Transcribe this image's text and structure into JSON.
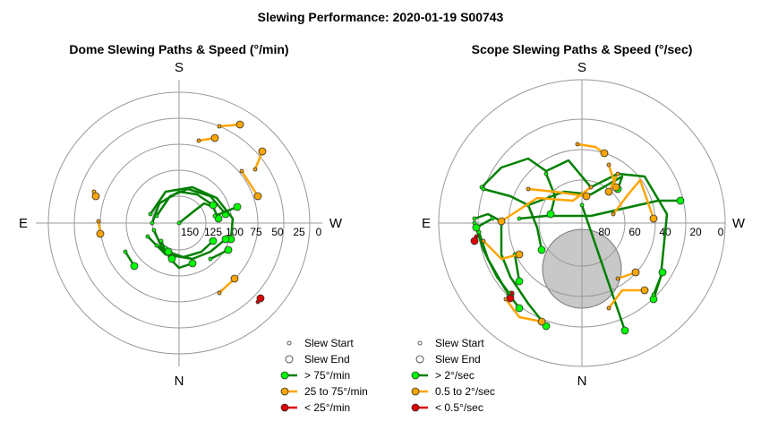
{
  "figure": {
    "title": "Slewing Performance: 2020-01-19 S00743"
  },
  "chart_data": [
    {
      "type": "scatter",
      "title": "Dome Slewing Paths & Speed (°/min)",
      "cardinals": {
        "top": "S",
        "bottom": "N",
        "left": "E",
        "right": "W"
      },
      "radial_ticks": [
        "150",
        "125",
        "100",
        "75",
        "50",
        "25",
        "0"
      ],
      "rlim": [
        175,
        0
      ],
      "grid": true,
      "legend_position": "bottom-right",
      "legend": [
        {
          "label": "Slew Start",
          "kind": "start"
        },
        {
          "label": "Slew End",
          "kind": "end"
        },
        {
          "label": "> 75°/min",
          "kind": "line",
          "color": "#008000",
          "marker": "#00ff00"
        },
        {
          "label": "25 to 75°/min",
          "kind": "line",
          "color": "#ffa500",
          "marker": "#ffa500"
        },
        {
          "label": "< 25°/min",
          "kind": "line",
          "color": "#dd0000",
          "marker": "#dd0000"
        }
      ],
      "paths": [
        {
          "speed": "fast",
          "points": [
            [
              0,
              0
            ],
            [
              15,
              -12
            ],
            [
              28,
              -22
            ],
            [
              38,
              -18
            ],
            [
              44,
              -5
            ]
          ]
        },
        {
          "speed": "fast",
          "points": [
            [
              -25,
              -8
            ],
            [
              -10,
              -30
            ],
            [
              10,
              -38
            ],
            [
              35,
              -30
            ],
            [
              52,
              -10
            ]
          ]
        },
        {
          "speed": "fast",
          "points": [
            [
              -30,
              0
            ],
            [
              -22,
              -22
            ],
            [
              0,
              -35
            ],
            [
              20,
              -32
            ],
            [
              38,
              -20
            ]
          ]
        },
        {
          "speed": "fast",
          "points": [
            [
              -28,
              8
            ],
            [
              -18,
              30
            ],
            [
              5,
              38
            ],
            [
              25,
              32
            ],
            [
              38,
              20
            ]
          ]
        },
        {
          "speed": "fast",
          "points": [
            [
              -32,
              -10
            ],
            [
              -15,
              -35
            ],
            [
              15,
              -40
            ],
            [
              42,
              -28
            ],
            [
              60,
              -5
            ],
            [
              58,
              18
            ]
          ]
        },
        {
          "speed": "fast",
          "points": [
            [
              -35,
              15
            ],
            [
              -15,
              35
            ],
            [
              15,
              40
            ],
            [
              35,
              32
            ],
            [
              52,
              18
            ]
          ]
        },
        {
          "speed": "fast",
          "points": [
            [
              -20,
              20
            ],
            [
              -10,
              40
            ],
            [
              0,
              50
            ],
            [
              15,
              45
            ]
          ]
        },
        {
          "speed": "fast",
          "points": [
            [
              -60,
              32
            ],
            [
              -50,
              48
            ]
          ]
        },
        {
          "speed": "fast",
          "points": [
            [
              -15,
              28
            ],
            [
              -8,
              40
            ]
          ]
        },
        {
          "speed": "fast",
          "points": [
            [
              35,
              40
            ],
            [
              55,
              30
            ]
          ]
        },
        {
          "speed": "fast",
          "points": [
            [
              -25,
              25
            ],
            [
              -12,
              32
            ]
          ]
        },
        {
          "speed": "fast",
          "points": [
            [
              40,
              -8
            ],
            [
              65,
              -18
            ]
          ]
        },
        {
          "speed": "medium",
          "points": [
            [
              45,
              -108
            ],
            [
              68,
              -110
            ]
          ]
        },
        {
          "speed": "medium",
          "points": [
            [
              22,
              -92
            ],
            [
              40,
              -95
            ]
          ]
        },
        {
          "speed": "medium",
          "points": [
            [
              85,
              -60
            ],
            [
              93,
              -80
            ]
          ]
        },
        {
          "speed": "medium",
          "points": [
            [
              70,
              -58
            ],
            [
              88,
              -30
            ]
          ]
        },
        {
          "speed": "medium",
          "points": [
            [
              -90,
              -2
            ],
            [
              -88,
              12
            ]
          ]
        },
        {
          "speed": "medium",
          "points": [
            [
              45,
              78
            ],
            [
              62,
              62
            ]
          ]
        },
        {
          "speed": "medium",
          "points": [
            [
              -95,
              -35
            ],
            [
              -93,
              -30
            ]
          ]
        },
        {
          "speed": "slow",
          "points": [
            [
              88,
              88
            ],
            [
              91,
              84
            ]
          ]
        }
      ]
    },
    {
      "type": "scatter",
      "title": "Scope Slewing Paths & Speed (°/sec)",
      "cardinals": {
        "top": "S",
        "bottom": "N",
        "left": "E",
        "right": "W"
      },
      "radial_ticks": [
        "80",
        "60",
        "40",
        "20",
        "0"
      ],
      "rlim": [
        90,
        0
      ],
      "grid": true,
      "legend_position": "bottom-right",
      "legend": [
        {
          "label": "Slew Start",
          "kind": "start"
        },
        {
          "label": "Slew End",
          "kind": "end"
        },
        {
          "label": "> 2°/sec",
          "kind": "line",
          "color": "#008000",
          "marker": "#00ff00"
        },
        {
          "label": "0.5 to 2°/sec",
          "kind": "line",
          "color": "#ffa500",
          "marker": "#ffa500"
        },
        {
          "label": "< 0.5°/sec",
          "kind": "line",
          "color": "#dd0000",
          "marker": "#dd0000"
        }
      ],
      "paths": [
        {
          "speed": "fast",
          "points": [
            [
              -112,
              -40
            ],
            [
              -90,
              -62
            ],
            [
              -60,
              -72
            ],
            [
              -40,
              -58
            ],
            [
              -15,
              -70
            ],
            [
              10,
              -40
            ],
            [
              40,
              -55
            ],
            [
              70,
              -52
            ],
            [
              95,
              -10
            ],
            [
              88,
              60
            ],
            [
              80,
              85
            ]
          ]
        },
        {
          "speed": "fast",
          "points": [
            [
              -110,
              -38
            ],
            [
              -80,
              -30
            ],
            [
              -60,
              -20
            ],
            [
              -20,
              -35
            ],
            [
              10,
              -32
            ],
            [
              45,
              -52
            ],
            [
              40,
              -38
            ]
          ]
        },
        {
          "speed": "fast",
          "points": [
            [
              -70,
              -5
            ],
            [
              -40,
              -8
            ],
            [
              10,
              -8
            ],
            [
              85,
              -25
            ],
            [
              110,
              -25
            ]
          ]
        },
        {
          "speed": "fast",
          "points": [
            [
              -120,
              -5
            ],
            [
              -105,
              -10
            ],
            [
              -90,
              -2
            ],
            [
              -90,
              35
            ],
            [
              -80,
              60
            ],
            [
              -60,
              90
            ],
            [
              -40,
              115
            ]
          ]
        },
        {
          "speed": "fast",
          "points": [
            [
              -120,
              0
            ],
            [
              -110,
              30
            ],
            [
              -95,
              60
            ],
            [
              -80,
              80
            ]
          ]
        },
        {
          "speed": "fast",
          "points": [
            [
              -115,
              10
            ],
            [
              -105,
              40
            ],
            [
              -85,
              75
            ],
            [
              -70,
              95
            ]
          ]
        },
        {
          "speed": "fast",
          "points": [
            [
              -40,
              -55
            ],
            [
              -30,
              -30
            ],
            [
              -35,
              -10
            ]
          ]
        },
        {
          "speed": "fast",
          "points": [
            [
              -60,
              -20
            ],
            [
              -50,
              5
            ],
            [
              -45,
              30
            ]
          ]
        },
        {
          "speed": "fast",
          "points": [
            [
              0,
              -20
            ],
            [
              48,
              120
            ]
          ]
        },
        {
          "speed": "fast",
          "points": [
            [
              -75,
              35
            ],
            [
              -70,
              65
            ]
          ]
        },
        {
          "speed": "fast",
          "points": [
            [
              -100,
              -5
            ],
            [
              -118,
              5
            ]
          ]
        },
        {
          "speed": "fast",
          "points": [
            [
              80,
              80
            ],
            [
              90,
              55
            ]
          ]
        },
        {
          "speed": "medium",
          "points": [
            [
              10,
              -40
            ],
            [
              -10,
              -25
            ],
            [
              -50,
              -28
            ],
            [
              -70,
              -15
            ],
            [
              -90,
              -2
            ]
          ]
        },
        {
          "speed": "medium",
          "points": [
            [
              -5,
              -88
            ],
            [
              15,
              -85
            ],
            [
              25,
              -78
            ]
          ]
        },
        {
          "speed": "medium",
          "points": [
            [
              30,
              -65
            ],
            [
              38,
              -40
            ]
          ]
        },
        {
          "speed": "medium",
          "points": [
            [
              35,
              -10
            ],
            [
              50,
              -30
            ],
            [
              65,
              -48
            ],
            [
              80,
              -5
            ]
          ]
        },
        {
          "speed": "medium",
          "points": [
            [
              -85,
              85
            ],
            [
              -70,
              105
            ],
            [
              -45,
              110
            ]
          ]
        },
        {
          "speed": "medium",
          "points": [
            [
              -60,
              -38
            ],
            [
              -30,
              -35
            ],
            [
              5,
              -30
            ]
          ]
        },
        {
          "speed": "medium",
          "points": [
            [
              30,
              95
            ],
            [
              45,
              75
            ],
            [
              70,
              75
            ]
          ]
        },
        {
          "speed": "medium",
          "points": [
            [
              40,
              62
            ],
            [
              60,
              55
            ]
          ]
        },
        {
          "speed": "medium",
          "points": [
            [
              -110,
              20
            ],
            [
              -90,
              40
            ],
            [
              -70,
              35
            ]
          ]
        },
        {
          "speed": "medium",
          "points": [
            [
              40,
              -55
            ],
            [
              30,
              -35
            ]
          ]
        },
        {
          "speed": "slow",
          "points": [
            [
              -118,
              15
            ],
            [
              -120,
              20
            ]
          ]
        },
        {
          "speed": "slow",
          "points": [
            [
              -78,
              78
            ],
            [
              -80,
              84
            ]
          ]
        }
      ]
    }
  ]
}
